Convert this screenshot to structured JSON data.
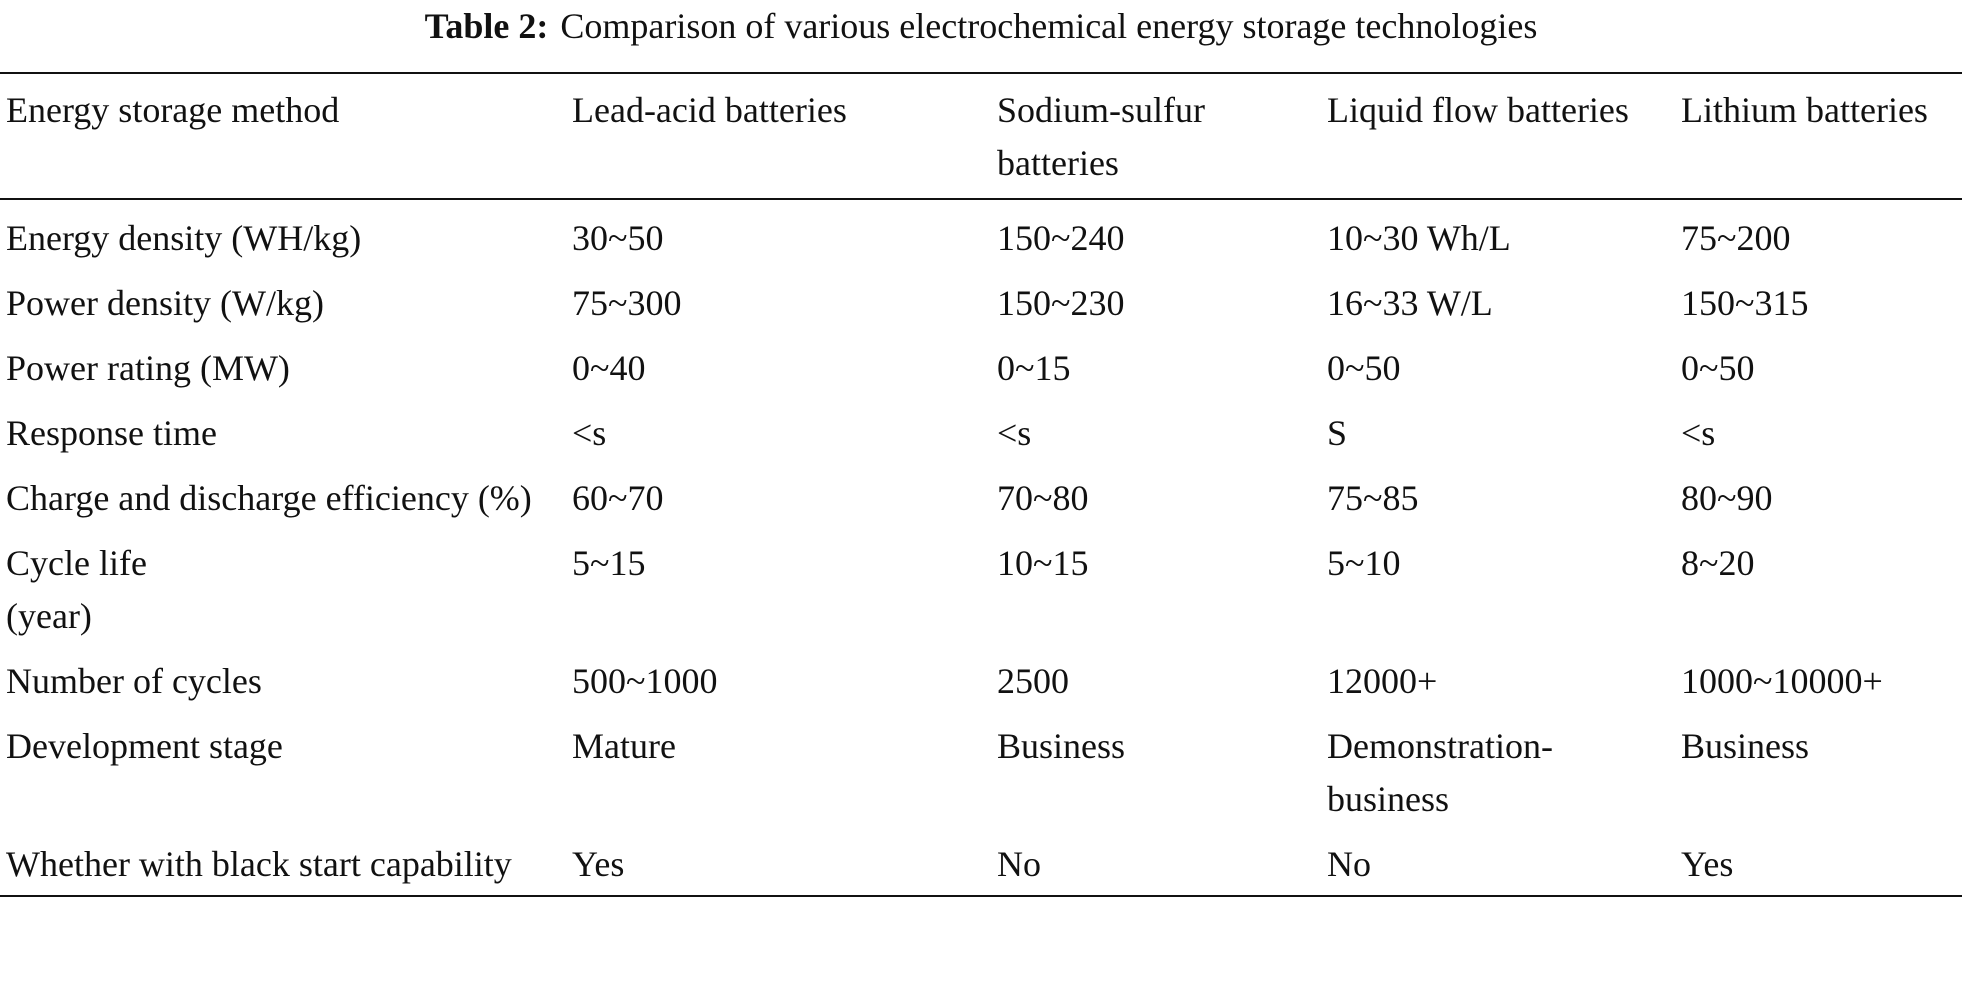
{
  "caption": {
    "label": "Table 2:",
    "text": "Comparison of various electrochemical energy storage technologies"
  },
  "table": {
    "header": [
      "Energy storage method",
      "Lead-acid batteries",
      "Sodium-sulfur batteries",
      "Liquid flow batteries",
      "Lithium batteries"
    ],
    "rows": [
      [
        "Energy density (WH/kg)",
        "30~50",
        "150~240",
        "10~30 Wh/L",
        "75~200"
      ],
      [
        "Power density (W/kg)",
        "75~300",
        "150~230",
        "16~33 W/L",
        "150~315"
      ],
      [
        "Power rating (MW)",
        "0~40",
        "0~15",
        "0~50",
        "0~50"
      ],
      [
        "Response time",
        "<s",
        "<s",
        "S",
        "<s"
      ],
      [
        "Charge and discharge efficiency (%)",
        "60~70",
        "70~80",
        "75~85",
        "80~90"
      ],
      [
        "Cycle life\n(year)",
        "5~15",
        "10~15",
        "5~10",
        "8~20"
      ],
      [
        "Number of cycles",
        "500~1000",
        "2500",
        "12000+",
        "1000~10000+"
      ],
      [
        "Development stage",
        "Mature",
        "Business",
        "Demonstration-business",
        "Business"
      ],
      [
        "Whether with black start capability",
        "Yes",
        "No",
        "No",
        "Yes"
      ]
    ]
  }
}
